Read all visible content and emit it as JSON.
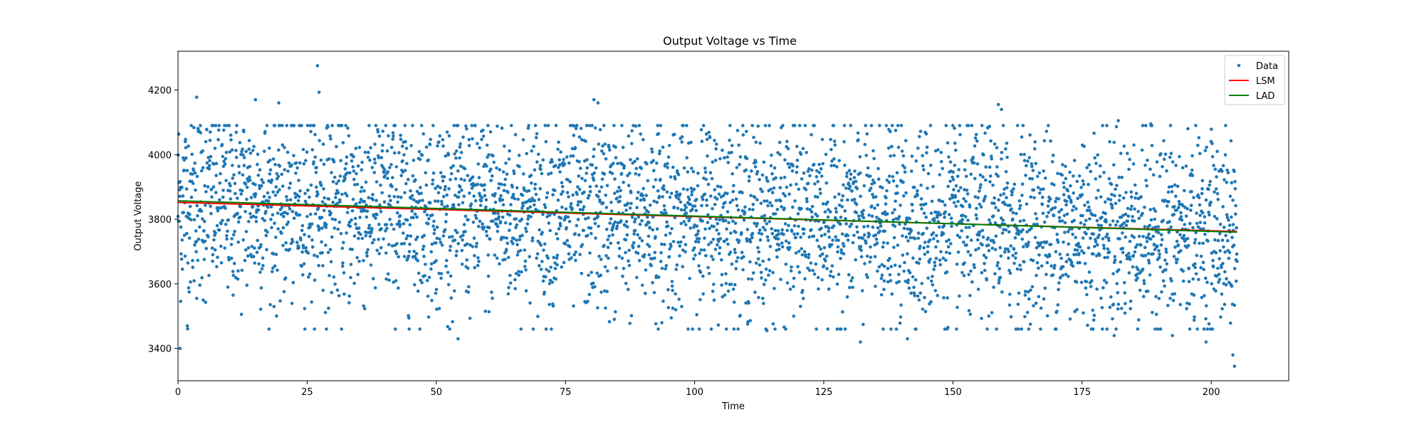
{
  "chart_data": {
    "type": "scatter",
    "title": "Output Voltage vs Time",
    "xlabel": "Time",
    "ylabel": "Output Voltage",
    "xlim": [
      0,
      215
    ],
    "ylim": [
      3300,
      4320
    ],
    "xticks": [
      0,
      25,
      50,
      75,
      100,
      125,
      150,
      175,
      200
    ],
    "yticks": [
      3400,
      3600,
      3800,
      4000,
      4200
    ],
    "grid": false,
    "legend_position": "top-right",
    "series": [
      {
        "name": "Data",
        "kind": "scatter",
        "color": "#1f77b4",
        "count": 4096,
        "x_range": [
          0,
          205
        ],
        "trend": [
          3855,
          3760
        ],
        "spread": 150,
        "highlights": [
          {
            "x": 27,
            "y": 4275
          },
          {
            "x": 27.3,
            "y": 4193
          },
          {
            "x": 3.6,
            "y": 4178
          },
          {
            "x": 15,
            "y": 4170
          },
          {
            "x": 19.5,
            "y": 4160
          },
          {
            "x": 80.5,
            "y": 4170
          },
          {
            "x": 81.3,
            "y": 4160
          },
          {
            "x": 158.8,
            "y": 4155
          },
          {
            "x": 159.4,
            "y": 4140
          },
          {
            "x": 182,
            "y": 4105
          },
          {
            "x": 188.3,
            "y": 4095
          },
          {
            "x": 0.4,
            "y": 3400
          },
          {
            "x": 1.8,
            "y": 3470
          },
          {
            "x": 54.2,
            "y": 3430
          },
          {
            "x": 114,
            "y": 3455
          },
          {
            "x": 132.1,
            "y": 3420
          },
          {
            "x": 141.2,
            "y": 3430
          },
          {
            "x": 181.2,
            "y": 3440
          },
          {
            "x": 204.5,
            "y": 3345
          },
          {
            "x": 204.2,
            "y": 3380
          },
          {
            "x": 199,
            "y": 3420
          },
          {
            "x": 192.5,
            "y": 3440
          }
        ]
      },
      {
        "name": "LSM",
        "kind": "line",
        "color": "#ff0000",
        "x": [
          0,
          205
        ],
        "y": [
          3852,
          3762
        ]
      },
      {
        "name": "LAD",
        "kind": "line",
        "color": "#008000",
        "x": [
          0,
          205
        ],
        "y": [
          3857,
          3760
        ]
      }
    ]
  }
}
